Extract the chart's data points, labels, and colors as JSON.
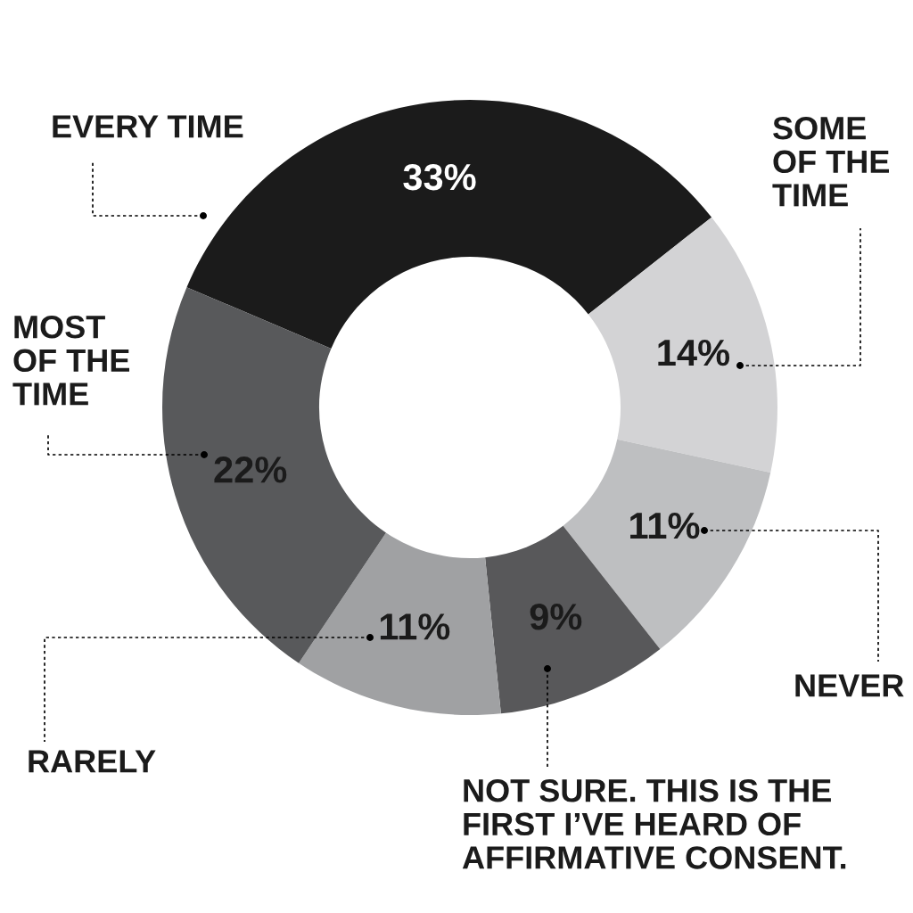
{
  "chart_data": {
    "type": "donut",
    "categories": [
      "EVERY TIME",
      "SOME\nOF THE\nTIME",
      "NEVER",
      "NOT SURE. THIS IS THE\nFIRST I’VE HEARD OF\nAFFIRMATIVE CONSENT.",
      "RARELY",
      "MOST\nOF THE\nTIME"
    ],
    "values": [
      33,
      14,
      11,
      9,
      11,
      22
    ],
    "value_labels": [
      "33%",
      "14%",
      "11%",
      "9%",
      "11%",
      "22%"
    ],
    "colors": [
      "#1b1b1b",
      "#d3d3d5",
      "#bebfc1",
      "#58585a",
      "#a0a1a3",
      "#58595b"
    ],
    "legend": false
  }
}
